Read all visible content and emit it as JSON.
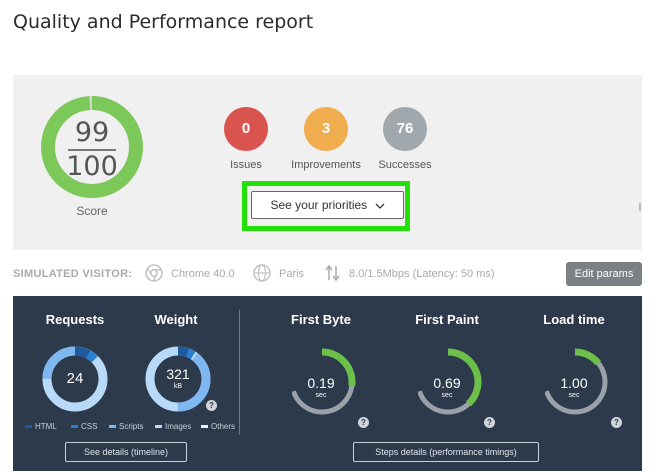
{
  "page_title": "Quality and Performance report",
  "score": {
    "value": "99",
    "max": "100",
    "label": "Score",
    "fraction": 0.99,
    "color": "#7cc95a"
  },
  "stats": [
    {
      "value": "0",
      "label": "Issues",
      "color": "#d9534f"
    },
    {
      "value": "3",
      "label": "Improvements",
      "color": "#f0ad4e"
    },
    {
      "value": "76",
      "label": "Successes",
      "color": "#a0a8ae"
    }
  ],
  "priorities_button": "See your priorities",
  "simulated_visitor": {
    "label": "SIMULATED VISITOR:",
    "browser": "Chrome 40.0",
    "browser_icon": "chrome-icon",
    "location": "Paris",
    "location_icon": "globe-icon",
    "bandwidth": "8.0/1.5Mbps (Latency: 50 ms)",
    "bandwidth_icon": "transfer-arrows-icon",
    "edit_button": "Edit params"
  },
  "performance": {
    "requests": {
      "title": "Requests",
      "value": "24"
    },
    "weight": {
      "title": "Weight",
      "value": "321",
      "unit": "kB"
    },
    "legend": [
      "HTML",
      "CSS",
      "Scripts",
      "Images",
      "Others"
    ],
    "legend_colors": [
      "#1f5aa0",
      "#2a7fd0",
      "#7fb7f0",
      "#b9d9f8",
      "#e8eef4"
    ],
    "first_byte": {
      "title": "First Byte",
      "value": "0.19",
      "unit": "sec",
      "fraction": 0.27
    },
    "first_paint": {
      "title": "First Paint",
      "value": "0.69",
      "unit": "sec",
      "fraction": 0.38
    },
    "load_time": {
      "title": "Load time",
      "value": "1.00",
      "unit": "sec",
      "fraction": 0.14
    },
    "gauge_color": "#6cc04a",
    "timeline_button": "See details (timeline)",
    "steps_button": "Steps details (performance timings)"
  }
}
